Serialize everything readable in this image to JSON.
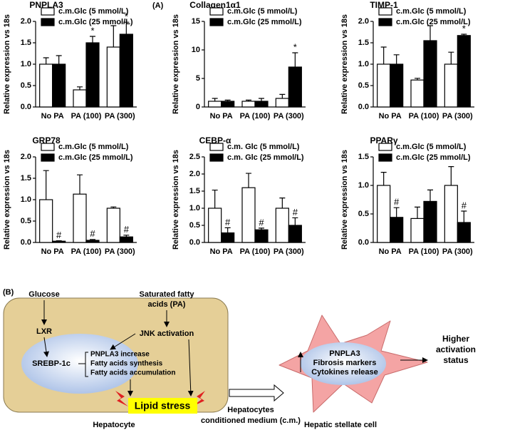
{
  "chart_data": [
    {
      "type": "bar",
      "title": "PNPLA3",
      "ylabel": "Relative expression vs 18s",
      "categories": [
        "No PA",
        "PA (100)",
        "PA (300)"
      ],
      "ylim": [
        0,
        2.0
      ],
      "yticks": [
        {
          "value": 0,
          "label": "0.0"
        },
        {
          "value": 0.5,
          "label": "0.5"
        },
        {
          "value": 1,
          "label": "1.0"
        },
        {
          "value": 1.5,
          "label": "1.5"
        },
        {
          "value": 2,
          "label": "2.0"
        }
      ],
      "series": [
        {
          "name": "c.m.Glc (5 mmol/L)",
          "color": "#ffffff",
          "values": [
            1.0,
            0.4,
            1.4
          ],
          "errors": [
            0.15,
            0.07,
            0.5
          ],
          "markers": [
            null,
            null,
            null
          ]
        },
        {
          "name": "c.m.Glc (25 mmol/L)",
          "color": "#000000",
          "values": [
            1.0,
            1.5,
            1.7
          ],
          "errors": [
            0.2,
            0.15,
            0.28
          ],
          "markers": [
            null,
            "*",
            "*"
          ]
        }
      ]
    },
    {
      "type": "bar",
      "title": "Collagen1α1",
      "ylabel": "Relative expression vs 18s",
      "categories": [
        "No PA",
        "PA (100)",
        "PA (300)"
      ],
      "ylim": [
        0,
        15
      ],
      "yticks": [
        0,
        5,
        10,
        15
      ],
      "series": [
        {
          "name": "c.m.Glc (5 mmol/L)",
          "color": "#ffffff",
          "values": [
            1.0,
            1.0,
            1.5
          ],
          "errors": [
            0.5,
            0.2,
            0.7
          ],
          "markers": [
            null,
            null,
            null
          ]
        },
        {
          "name": "c.m.Glc (25 mmol/L)",
          "color": "#000000",
          "values": [
            1.0,
            1.0,
            7.0
          ],
          "errors": [
            0.2,
            0.5,
            2.5
          ],
          "markers": [
            null,
            null,
            "*"
          ]
        }
      ]
    },
    {
      "type": "bar",
      "title": "TIMP-1",
      "ylabel": "Relative expression vs 18s",
      "categories": [
        "No PA",
        "PA (100)",
        "PA (300)"
      ],
      "ylim": [
        0,
        2.0
      ],
      "yticks": [
        {
          "value": 0,
          "label": "0.0"
        },
        {
          "value": 0.5,
          "label": "0.5"
        },
        {
          "value": 1,
          "label": "1.0"
        },
        {
          "value": 1.5,
          "label": "1.5"
        },
        {
          "value": 2,
          "label": "2.0"
        }
      ],
      "series": [
        {
          "name": "c.m.Glc (5 mmol/L)",
          "color": "#ffffff",
          "values": [
            1.0,
            0.63,
            1.0
          ],
          "errors": [
            0.4,
            0.04,
            0.28
          ],
          "markers": [
            null,
            null,
            null
          ]
        },
        {
          "name": "c.m.Glc (25 mmol/L)",
          "color": "#000000",
          "values": [
            1.0,
            1.55,
            1.67
          ],
          "errors": [
            0.22,
            0.35,
            0.03
          ],
          "markers": [
            null,
            null,
            "*"
          ]
        }
      ]
    },
    {
      "type": "bar",
      "title": "GRP78",
      "ylabel": "Relative expression vs 18s",
      "categories": [
        "No PA",
        "PA (100)",
        "PA (300)"
      ],
      "ylim": [
        0,
        2.0
      ],
      "yticks": [
        {
          "value": 0,
          "label": "0.0"
        },
        {
          "value": 0.5,
          "label": "0.5"
        },
        {
          "value": 1,
          "label": "1.0"
        },
        {
          "value": 1.5,
          "label": "1.5"
        },
        {
          "value": 2,
          "label": "2.0"
        }
      ],
      "series": [
        {
          "name": "c.m.Glc (5 mmol/L)",
          "color": "#ffffff",
          "values": [
            1.0,
            1.13,
            0.8
          ],
          "errors": [
            0.68,
            0.45,
            0.03
          ],
          "markers": [
            null,
            null,
            null
          ]
        },
        {
          "name": "c.m.Glc (25 mmol/L)",
          "color": "#000000",
          "values": [
            0.03,
            0.05,
            0.13
          ],
          "errors": [
            0.01,
            0.02,
            0.04
          ],
          "markers": [
            "#",
            "#",
            "#"
          ]
        }
      ]
    },
    {
      "type": "bar",
      "title": "CEBP-α",
      "ylabel": "Relative expression vs 18s",
      "categories": [
        "No PA",
        "PA (100)",
        "PA (300)"
      ],
      "ylim": [
        0,
        2.5
      ],
      "yticks": [
        {
          "value": 0,
          "label": "0.0"
        },
        {
          "value": 0.5,
          "label": "0.5"
        },
        {
          "value": 1,
          "label": "1.0"
        },
        {
          "value": 1.5,
          "label": "1.5"
        },
        {
          "value": 2,
          "label": "2.0"
        },
        {
          "value": 2.5,
          "label": "2.5"
        }
      ],
      "series": [
        {
          "name": "c.m. Glc (5 mmol/L)",
          "color": "#ffffff",
          "values": [
            1.0,
            1.6,
            1.0
          ],
          "errors": [
            0.53,
            0.42,
            0.3
          ],
          "markers": [
            null,
            null,
            null
          ]
        },
        {
          "name": "c.m. Glc (25 mmol/L)",
          "color": "#000000",
          "values": [
            0.28,
            0.37,
            0.5
          ],
          "errors": [
            0.15,
            0.05,
            0.22
          ],
          "markers": [
            "#",
            "#",
            "#"
          ]
        }
      ]
    },
    {
      "type": "bar",
      "title": "PPARγ",
      "ylabel": "Relative expression vs 18s",
      "categories": [
        "No PA",
        "PA (100)",
        "PA (300)"
      ],
      "ylim": [
        0,
        1.5
      ],
      "yticks": [
        {
          "value": 0,
          "label": "0.0"
        },
        {
          "value": 0.5,
          "label": "0.5"
        },
        {
          "value": 1,
          "label": "1.0"
        },
        {
          "value": 1.5,
          "label": "1.5"
        }
      ],
      "series": [
        {
          "name": "c.m.Glc (5 mmol/L)",
          "color": "#ffffff",
          "values": [
            1.0,
            0.42,
            1.0
          ],
          "errors": [
            0.23,
            0.2,
            0.33
          ],
          "markers": [
            null,
            null,
            null
          ]
        },
        {
          "name": "c.m.Glc (25 mmol/L)",
          "color": "#000000",
          "values": [
            0.44,
            0.72,
            0.35
          ],
          "errors": [
            0.17,
            0.2,
            0.2
          ],
          "markers": [
            "#",
            null,
            "#"
          ]
        }
      ]
    }
  ],
  "panel_a": {
    "label": "(A)"
  },
  "panel_b": {
    "label": "(B)",
    "glucose": "Glucose",
    "lxr": "LXR",
    "srebp": "SREBP-1c",
    "effects": [
      "PNPLA3 increase",
      "Fatty acids synthesis",
      "Fatty acids accumulation"
    ],
    "pa": [
      "Saturated fatty",
      "acids (PA)"
    ],
    "jnk": "JNK activation",
    "lipid_stress": "Lipid stress",
    "hepatocyte": "Hepatocyte",
    "medium": [
      "Hepatocytes",
      "conditioned medium (c.m.)"
    ],
    "hsc_effects": [
      "PNPLA3",
      "Fibrosis markers",
      "Cytokines release"
    ],
    "outcome": [
      "Higher",
      "activation",
      "status"
    ],
    "hsc": "Hepatic stellate cell"
  }
}
